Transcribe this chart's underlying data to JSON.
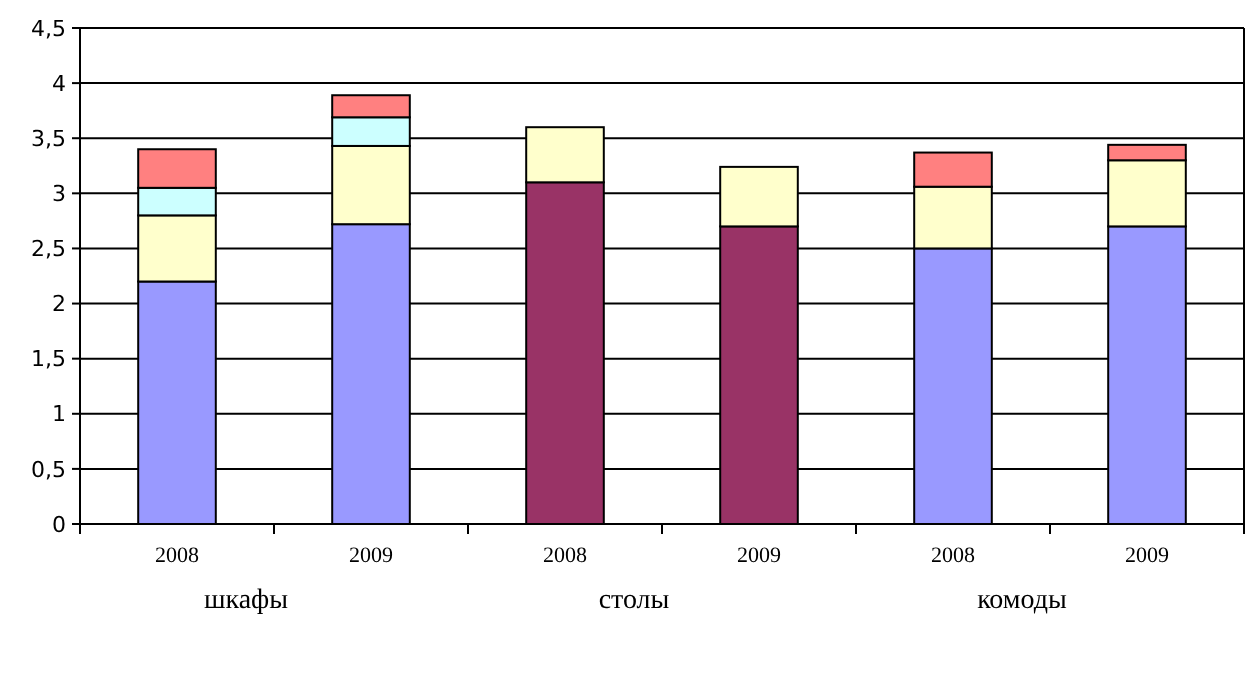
{
  "chart_data": {
    "type": "bar",
    "stacked": true,
    "categories": [
      "2008",
      "2009",
      "2008",
      "2009",
      "2008",
      "2009"
    ],
    "series": [
      {
        "colors": [
          "#9999ff",
          "#9999ff",
          "#993366",
          "#993366",
          "#9999ff",
          "#9999ff"
        ],
        "values": [
          2.2,
          2.72,
          3.1,
          2.7,
          2.5,
          2.7
        ]
      },
      {
        "color": "#ffffcc",
        "values": [
          0.6,
          0.71,
          0.5,
          0.54,
          0.56,
          0.6
        ]
      },
      {
        "color": "#ccffff",
        "values": [
          0.25,
          0.26,
          null,
          null,
          null,
          null
        ]
      },
      {
        "color": "#ff8080",
        "values": [
          0.35,
          0.2,
          null,
          null,
          0.31,
          0.14
        ]
      }
    ],
    "ylim": [
      0,
      4.5
    ],
    "yticks": [
      0,
      {
        "value": 0.5,
        "label": "0,5"
      },
      1,
      {
        "value": 1.5,
        "label": "1,5"
      },
      2,
      {
        "value": 2.5,
        "label": "2,5"
      },
      3,
      {
        "value": 3.5,
        "label": "3,5"
      },
      4,
      {
        "value": 4.5,
        "label": "4,5"
      }
    ],
    "grid": "y",
    "annotations": [
      "шкафы",
      "столы",
      "комоды"
    ]
  }
}
